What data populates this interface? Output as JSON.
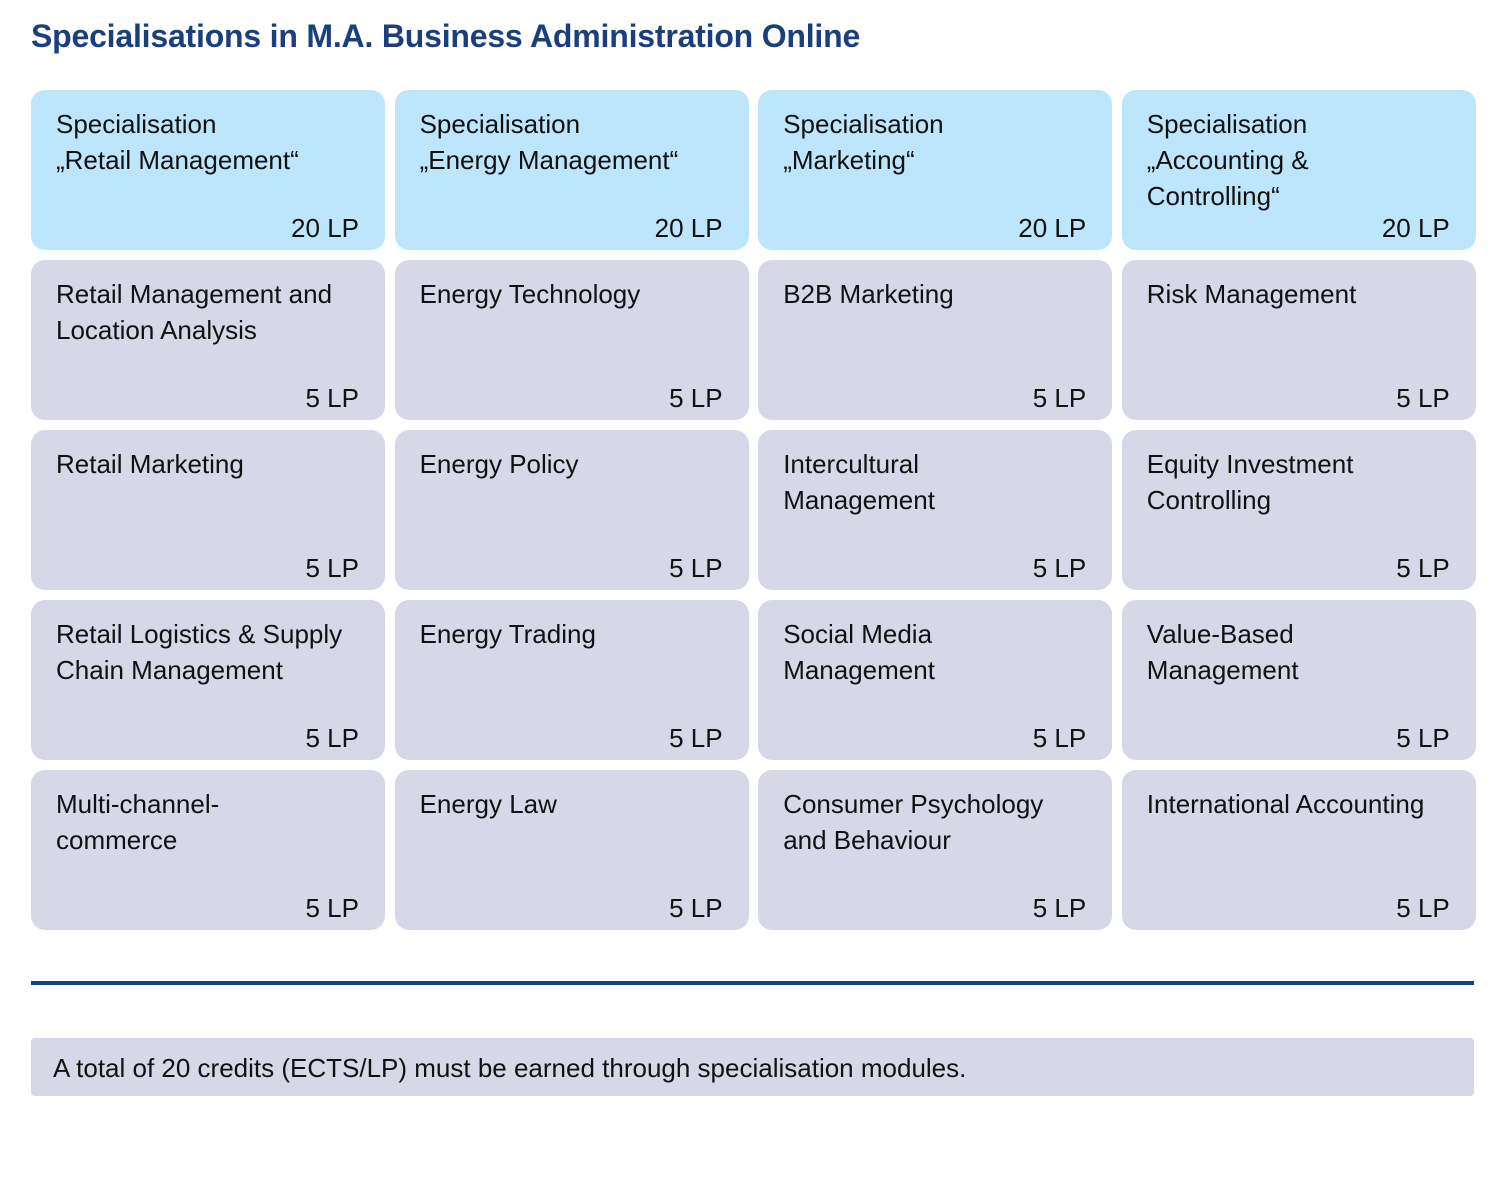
{
  "title": "Specialisations in M.A. Business Administration Online",
  "columns": [
    {
      "header": {
        "name": "Specialisation\n„Retail Management“",
        "lp": "20 LP"
      },
      "modules": [
        {
          "name": "Retail Management and\nLocation Analysis",
          "lp": "5 LP"
        },
        {
          "name": "Retail Marketing",
          "lp": "5 LP"
        },
        {
          "name": "Retail Logistics & Supply\nChain Management",
          "lp": "5 LP"
        },
        {
          "name": "Multi-channel-\ncommerce",
          "lp": "5 LP"
        }
      ]
    },
    {
      "header": {
        "name": "Specialisation\n„Energy Management“",
        "lp": "20 LP"
      },
      "modules": [
        {
          "name": "Energy Technology",
          "lp": "5 LP"
        },
        {
          "name": "Energy Policy",
          "lp": "5 LP"
        },
        {
          "name": "Energy Trading",
          "lp": "5 LP"
        },
        {
          "name": "Energy Law",
          "lp": "5 LP"
        }
      ]
    },
    {
      "header": {
        "name": "Specialisation\n„Marketing“",
        "lp": "20 LP"
      },
      "modules": [
        {
          "name": "B2B Marketing",
          "lp": "5 LP"
        },
        {
          "name": "Intercultural\nManagement",
          "lp": "5 LP"
        },
        {
          "name": "Social Media\nManagement",
          "lp": "5 LP"
        },
        {
          "name": "Consumer Psychology\nand Behaviour",
          "lp": "5 LP"
        }
      ]
    },
    {
      "header": {
        "name": "Specialisation\n„Accounting &\nControlling“",
        "lp": "20 LP"
      },
      "modules": [
        {
          "name": "Risk Management",
          "lp": "5 LP"
        },
        {
          "name": "Equity Investment\nControlling",
          "lp": "5 LP"
        },
        {
          "name": "Value-Based\nManagement",
          "lp": "5 LP"
        },
        {
          "name": "International Accounting",
          "lp": "5 LP"
        }
      ]
    }
  ],
  "note": "A total of 20 credits (ECTS/LP) must be earned through specialisation modules.",
  "colors": {
    "title": "#1b3f7c",
    "header_card": "#bde5fb",
    "module_card": "#d6d8e8"
  }
}
